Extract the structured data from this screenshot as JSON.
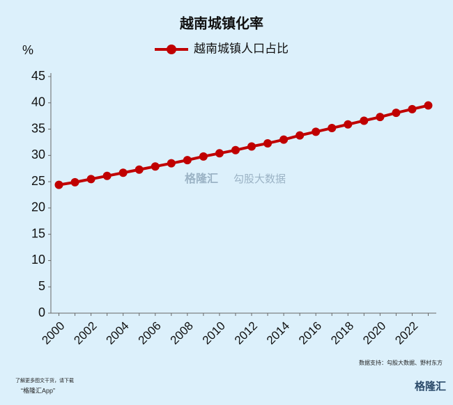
{
  "chart_data": {
    "type": "line",
    "title": "越南城镇化率",
    "y_label": "%",
    "categories": [
      "2000",
      null,
      "2002",
      null,
      "2004",
      null,
      "2006",
      null,
      "2008",
      null,
      "2010",
      null,
      "2012",
      null,
      "2014",
      null,
      "2016",
      null,
      "2018",
      null,
      "2020",
      null,
      "2022",
      null
    ],
    "series": [
      {
        "name": "越南城镇人口占比",
        "color": "#c00000",
        "values": [
          24.4,
          24.9,
          25.5,
          26.1,
          26.7,
          27.3,
          27.9,
          28.5,
          29.1,
          29.8,
          30.4,
          31.0,
          31.7,
          32.3,
          33.0,
          33.8,
          34.5,
          35.2,
          35.9,
          36.6,
          37.3,
          38.1,
          38.8,
          39.5
        ]
      }
    ],
    "ylim": [
      0,
      45
    ],
    "yticks": [
      0,
      5,
      10,
      15,
      20,
      25,
      30,
      35,
      40,
      45
    ],
    "grid": false
  },
  "source": "数据支持：勾股大数据、野村东方",
  "footer": {
    "line1": "了解更多图文干货，请下载",
    "line2": "“格隆汇App”"
  },
  "watermark": {
    "brand": "格隆汇",
    "partner": "勾股大数据"
  },
  "logo": "格隆汇"
}
